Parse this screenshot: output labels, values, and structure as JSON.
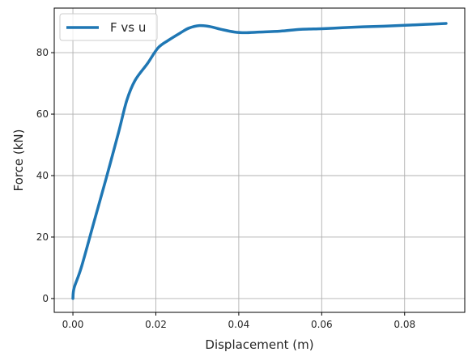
{
  "chart_data": {
    "type": "line",
    "title": "",
    "xlabel": "Displacement (m)",
    "ylabel": "Force (kN)",
    "xlim": [
      -0.0045,
      0.0945
    ],
    "ylim": [
      -4.5,
      94.5
    ],
    "xticks": [
      0.0,
      0.02,
      0.04,
      0.06,
      0.08
    ],
    "xtick_labels": [
      "0.00",
      "0.02",
      "0.04",
      "0.06",
      "0.08"
    ],
    "yticks": [
      0,
      20,
      40,
      60,
      80
    ],
    "ytick_labels": [
      "0",
      "20",
      "40",
      "60",
      "80"
    ],
    "grid": true,
    "legend": "top-left",
    "series": [
      {
        "name": "F vs u",
        "color": "#1f77b4",
        "x": [
          0.0,
          0.0003,
          0.002,
          0.005,
          0.008,
          0.011,
          0.013,
          0.015,
          0.018,
          0.0205,
          0.023,
          0.026,
          0.028,
          0.0305,
          0.033,
          0.036,
          0.039,
          0.0415,
          0.045,
          0.05,
          0.055,
          0.06,
          0.065,
          0.07,
          0.075,
          0.08,
          0.085,
          0.09
        ],
        "y": [
          0.0,
          3.5,
          10.0,
          24.5,
          39.0,
          54.0,
          64.5,
          71.0,
          76.5,
          81.5,
          84.0,
          86.5,
          88.0,
          88.8,
          88.5,
          87.5,
          86.7,
          86.5,
          86.7,
          87.0,
          87.6,
          87.8,
          88.1,
          88.4,
          88.6,
          88.9,
          89.2,
          89.5
        ]
      }
    ]
  }
}
